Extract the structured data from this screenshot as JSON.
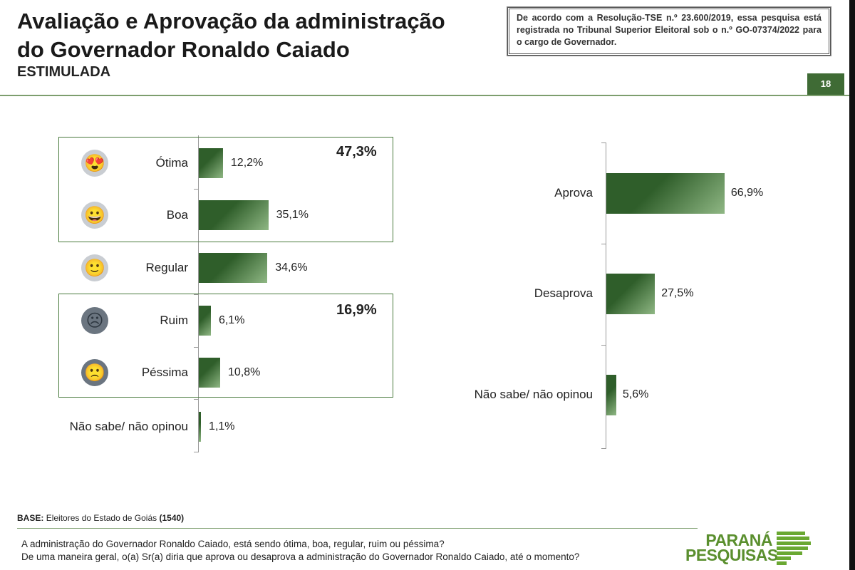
{
  "header": {
    "title_line1": "Avaliação e Aprovação da administração",
    "title_line2": "do Governador Ronaldo Caiado",
    "subtitle": "ESTIMULADA",
    "notice": "De acordo com a Resolução-TSE n.º 23.600/2019, essa pesquisa está registrada no Tribunal Superior Eleitoral sob o n.º GO-07374/2022 para o cargo de Governador.",
    "page_number": "18"
  },
  "chart_data": [
    {
      "type": "bar",
      "orientation": "horizontal",
      "title": "Avaliação",
      "categories": [
        "Ótima",
        "Boa",
        "Regular",
        "Ruim",
        "Péssima",
        "Não sabe/ não opinou"
      ],
      "values": [
        12.2,
        35.1,
        34.6,
        6.1,
        10.8,
        1.1
      ],
      "value_labels": [
        "12,2%",
        "35,1%",
        "34,6%",
        "6,1%",
        "10,8%",
        "1,1%"
      ],
      "icons": [
        "star-eyes-face-icon",
        "grin-face-icon",
        "smile-face-icon",
        "frown-face-icon",
        "sad-face-icon",
        null
      ],
      "groups": [
        {
          "label": "47,3%",
          "members": [
            "Ótima",
            "Boa"
          ],
          "value": 47.3
        },
        {
          "label": "16,9%",
          "members": [
            "Ruim",
            "Péssima"
          ],
          "value": 16.9
        }
      ]
    },
    {
      "type": "bar",
      "orientation": "horizontal",
      "title": "Aprovação",
      "categories": [
        "Aprova",
        "Desaprova",
        "Não sabe/ não opinou"
      ],
      "values": [
        66.9,
        27.5,
        5.6
      ],
      "value_labels": [
        "66,9%",
        "27,5%",
        "5,6%"
      ]
    }
  ],
  "footer": {
    "base_label": "BASE:",
    "base_text": "Eleitores do Estado de Goiás",
    "base_n": "(1540)",
    "question1": "A administração do Governador Ronaldo Caiado, está sendo ótima, boa, regular, ruim ou péssima?",
    "question2": "De uma maneira geral, o(a) Sr(a) diria que aprova ou desaprova a administração do Governador Ronaldo Caiado, até o momento?",
    "logo_line1": "PARANÁ",
    "logo_line2": "PESQUISAS"
  },
  "colors": {
    "bar": "#2f5e2a",
    "accent": "#3f6b35",
    "icon_light": "#c9cdd2",
    "icon_dark": "#6b7580"
  }
}
